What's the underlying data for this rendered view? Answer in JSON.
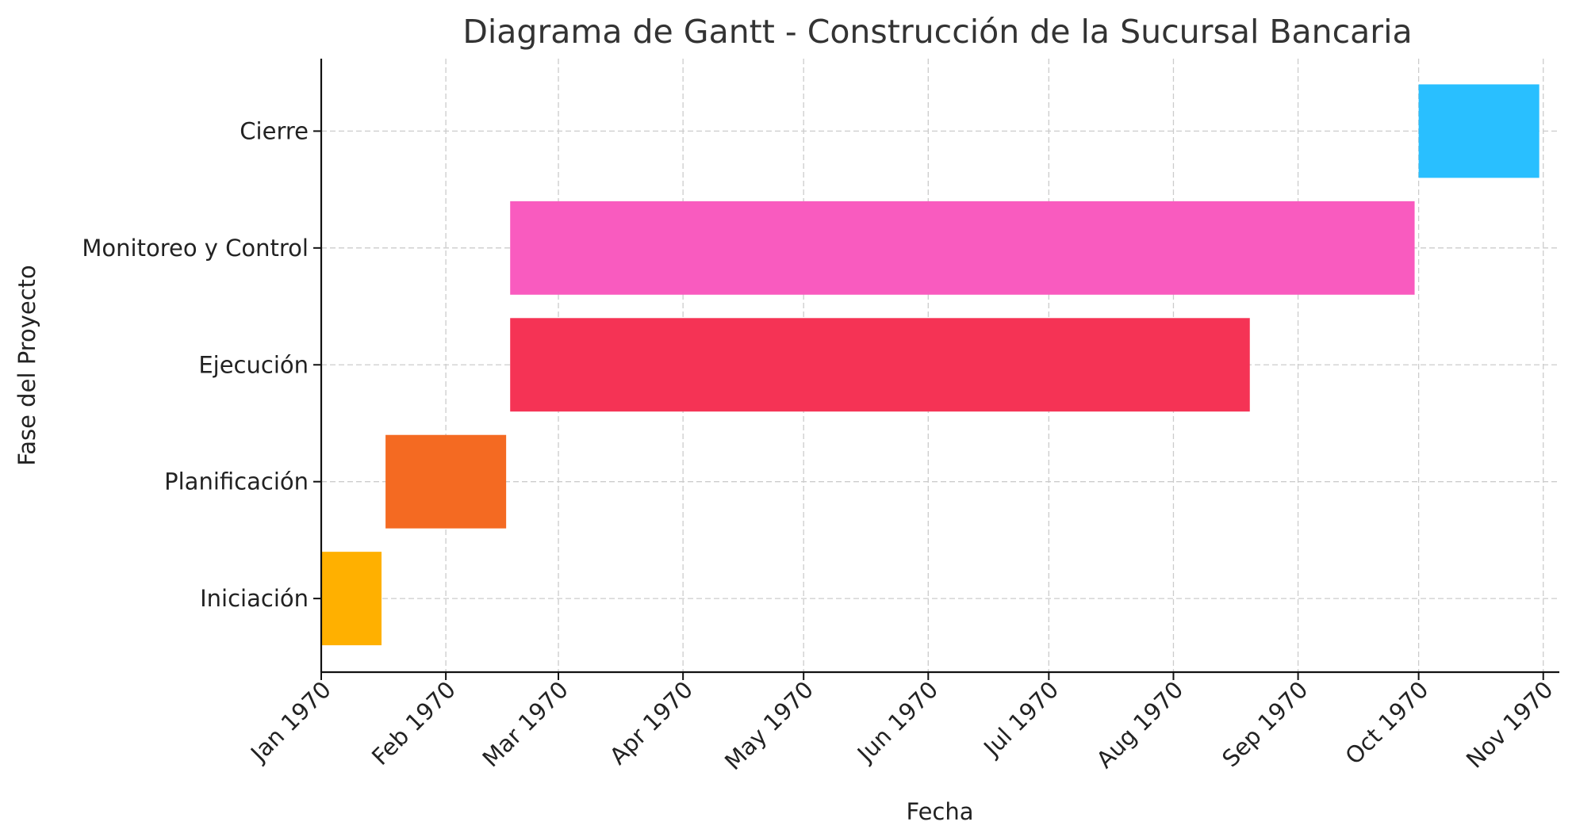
{
  "chart_data": {
    "type": "gantt",
    "title": "Diagrama de Gantt - Construcción de la Sucursal Bancaria",
    "xlabel": "Fecha",
    "ylabel": "Fase del Proyecto",
    "xlim": [
      "1970-01-01",
      "1970-11-05"
    ],
    "xticks": [
      {
        "date": "1970-01-01",
        "label": "Jan 1970"
      },
      {
        "date": "1970-02-01",
        "label": "Feb 1970"
      },
      {
        "date": "1970-03-01",
        "label": "Mar 1970"
      },
      {
        "date": "1970-04-01",
        "label": "Apr 1970"
      },
      {
        "date": "1970-05-01",
        "label": "May 1970"
      },
      {
        "date": "1970-06-01",
        "label": "Jun 1970"
      },
      {
        "date": "1970-07-01",
        "label": "Jul 1970"
      },
      {
        "date": "1970-08-01",
        "label": "Aug 1970"
      },
      {
        "date": "1970-09-01",
        "label": "Sep 1970"
      },
      {
        "date": "1970-10-01",
        "label": "Oct 1970"
      },
      {
        "date": "1970-11-01",
        "label": "Nov 1970"
      }
    ],
    "grid": true,
    "tasks": [
      {
        "name": "Iniciación",
        "start": "1970-01-01",
        "end": "1970-01-16",
        "color": "#FFB000"
      },
      {
        "name": "Planificación",
        "start": "1970-01-17",
        "end": "1970-02-16",
        "color": "#F46A22"
      },
      {
        "name": "Ejecución",
        "start": "1970-02-17",
        "end": "1970-08-20",
        "color": "#F53355"
      },
      {
        "name": "Monitoreo y Control",
        "start": "1970-02-17",
        "end": "1970-09-30",
        "color": "#F95BBF"
      },
      {
        "name": "Cierre",
        "start": "1970-10-01",
        "end": "1970-10-31",
        "color": "#29BFFF"
      }
    ]
  }
}
